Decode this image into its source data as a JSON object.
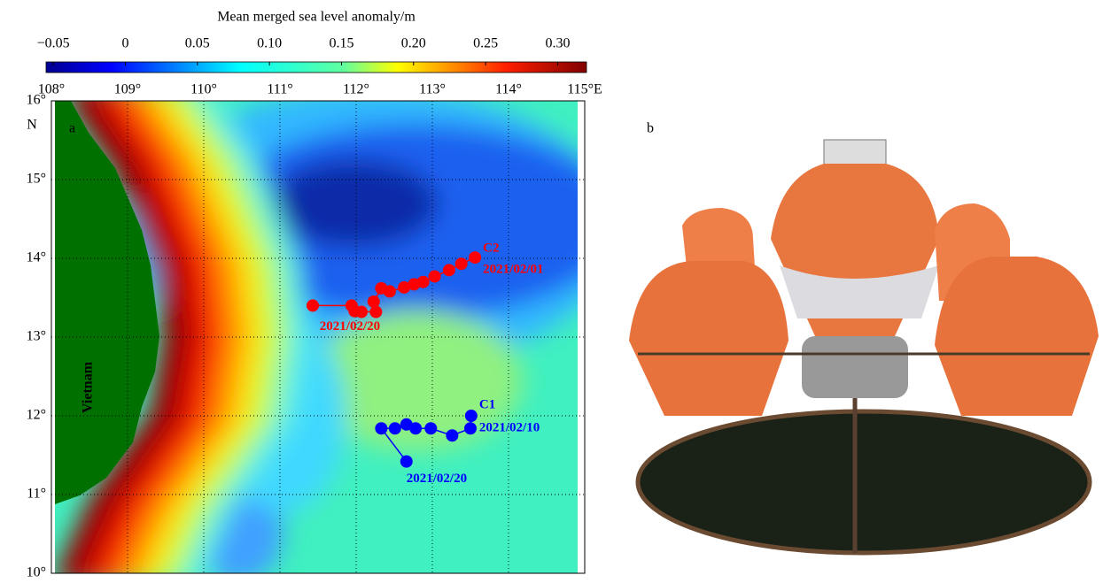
{
  "panel_a": {
    "label": "a",
    "colorbar": {
      "title": "Mean merged sea level anomaly/m",
      "lim": [
        -0.055,
        0.32
      ],
      "ticks": [
        {
          "value": -0.05,
          "label": "−0.05"
        },
        0,
        0.05,
        {
          "value": 0.1,
          "label": "0.10"
        },
        0.15,
        {
          "value": 0.2,
          "label": "0.20"
        },
        0.25,
        {
          "value": 0.3,
          "label": "0.30"
        }
      ]
    },
    "xlim": [
      108,
      115
    ],
    "ylim": [
      10,
      16
    ],
    "xticks": [
      {
        "value": 108,
        "label": "108°"
      },
      {
        "value": 109,
        "label": "109°"
      },
      {
        "value": 110,
        "label": "110°"
      },
      {
        "value": 111,
        "label": "111°"
      },
      {
        "value": 112,
        "label": "112°"
      },
      {
        "value": 113,
        "label": "113°"
      },
      {
        "value": 114,
        "label": "114°"
      },
      {
        "value": 115,
        "label": "115°E"
      }
    ],
    "yticks": [
      {
        "value": 10,
        "label": "10°"
      },
      {
        "value": 11,
        "label": "11°"
      },
      {
        "value": 12,
        "label": "12°"
      },
      {
        "value": 13,
        "label": "13°"
      },
      {
        "value": 14,
        "label": "14°"
      },
      {
        "value": 15,
        "label": "15°"
      },
      {
        "value": 16,
        "label": "16°"
      }
    ],
    "lat_unit": "N",
    "land_label": "Vietnam",
    "tracks": [
      {
        "name": "C2",
        "color": "#ff0000",
        "start_label": "2021/02/01",
        "end_label": "2021/02/20",
        "lon": [
          113.56,
          113.38,
          113.22,
          113.03,
          112.88,
          112.76,
          112.63,
          112.44,
          112.33,
          112.23,
          112.26,
          112.07,
          111.98,
          111.94,
          111.43
        ],
        "lat": [
          14.01,
          13.93,
          13.85,
          13.77,
          13.7,
          13.67,
          13.63,
          13.58,
          13.62,
          13.45,
          13.32,
          13.32,
          13.33,
          13.4,
          13.4
        ]
      },
      {
        "name": "C1",
        "color": "#0000ff",
        "start_label": "2021/02/10",
        "end_label": "2021/02/20",
        "lon": [
          113.51,
          113.5,
          113.26,
          112.98,
          112.78,
          112.66,
          112.51,
          112.33,
          112.66
        ],
        "lat": [
          12.0,
          11.84,
          11.75,
          11.84,
          11.84,
          11.89,
          11.84,
          11.84,
          11.42
        ]
      }
    ]
  },
  "panel_b": {
    "label": "b"
  }
}
